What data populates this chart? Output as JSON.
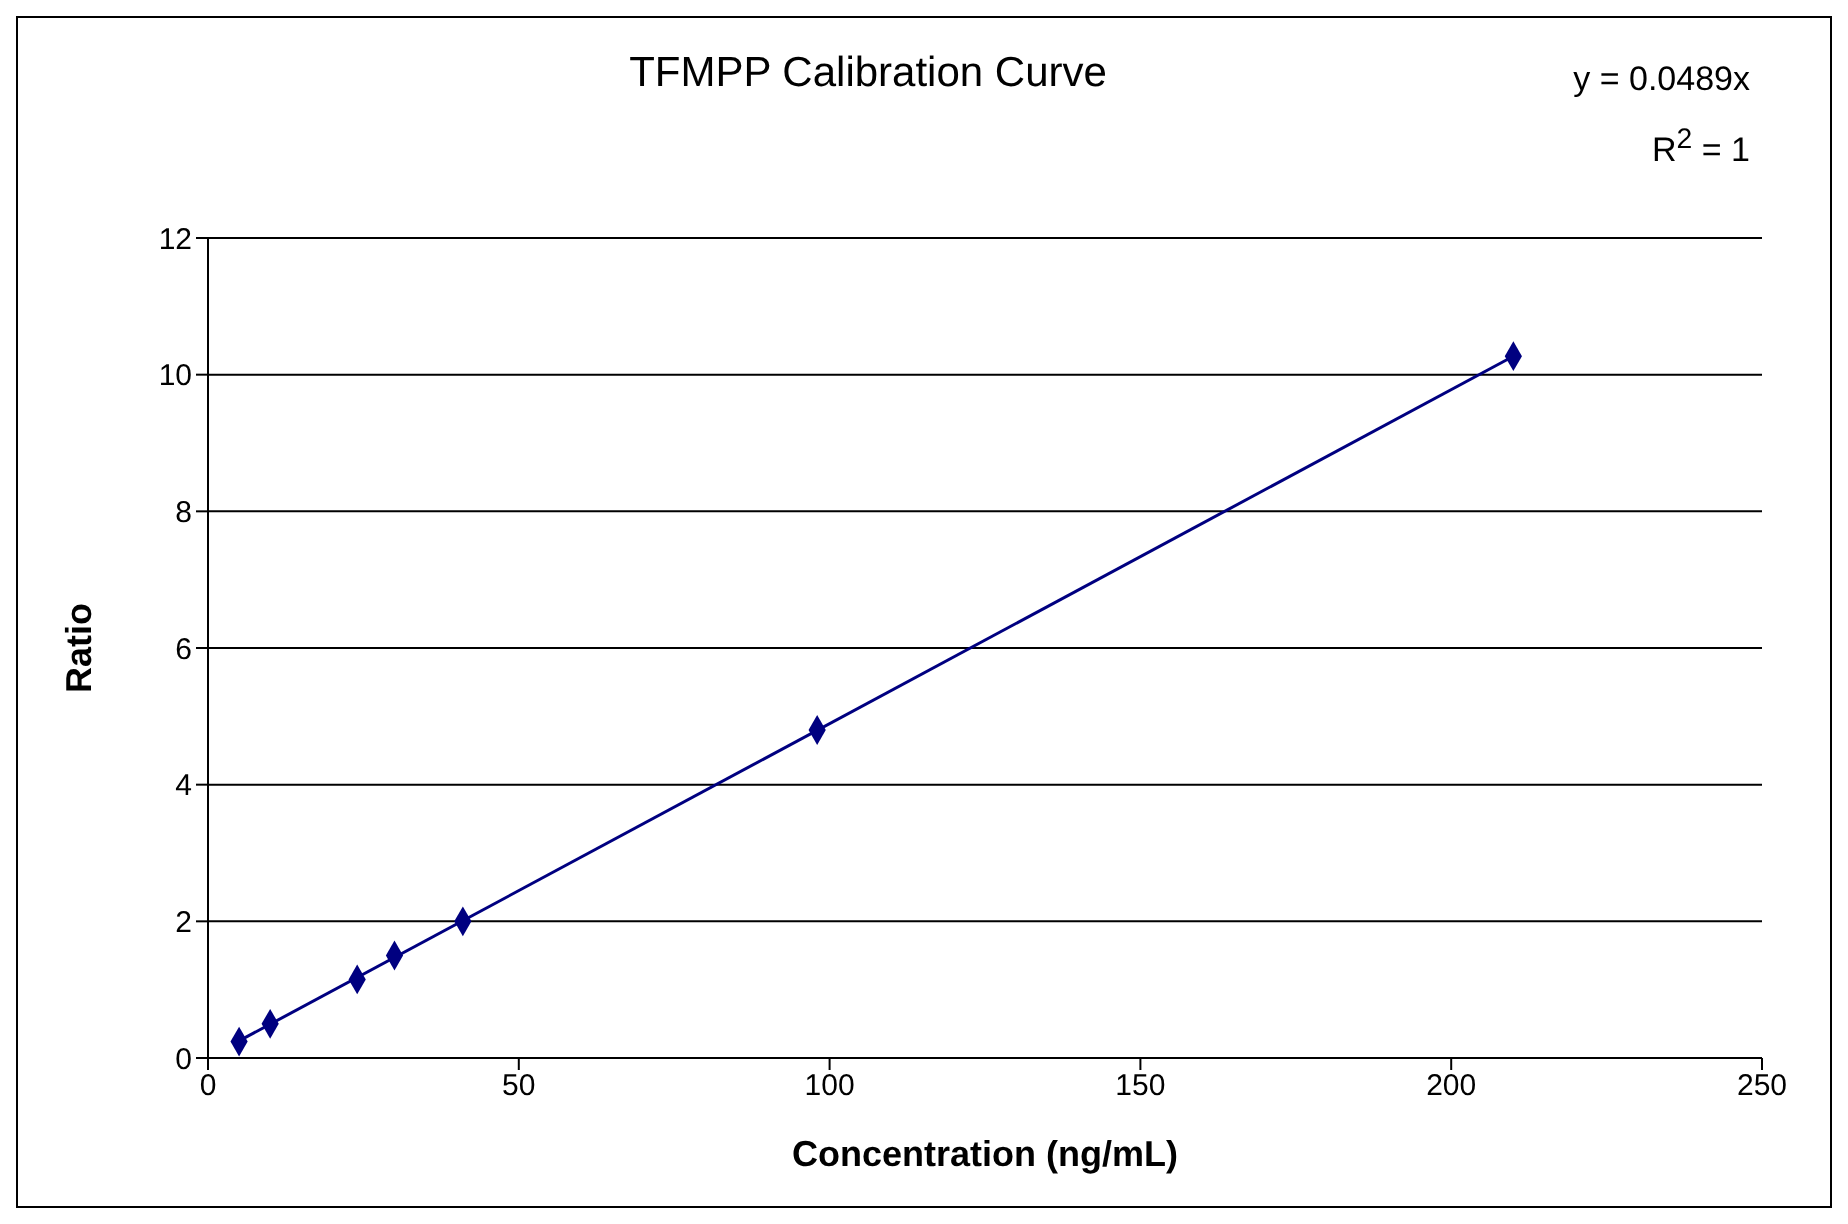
{
  "chart_data": {
    "type": "scatter",
    "title": "TFMPP Calibration Curve",
    "xlabel": "Concentration (ng/mL)",
    "ylabel": "Ratio",
    "annotations": [
      "y = 0.0489x",
      "R$^{2}$ = 1"
    ],
    "series": [
      {
        "marker": "diamond",
        "color": "#000080",
        "x": [
          5,
          10,
          24,
          30,
          41,
          98,
          210
        ],
        "values": [
          0.24,
          0.5,
          1.15,
          1.5,
          2.0,
          4.8,
          10.27
        ]
      },
      {
        "type": "line",
        "color": "#000080",
        "x": [
          5,
          210
        ],
        "values": [
          0.25,
          10.27
        ]
      }
    ],
    "xlim": [
      0,
      250
    ],
    "xticks": [
      0,
      50,
      100,
      150,
      200,
      250
    ],
    "ylim": [
      0,
      12
    ],
    "yticks": [
      0,
      2,
      4,
      6,
      8,
      10,
      12
    ],
    "grid": "y",
    "legend": false,
    "line_style": "solid"
  }
}
